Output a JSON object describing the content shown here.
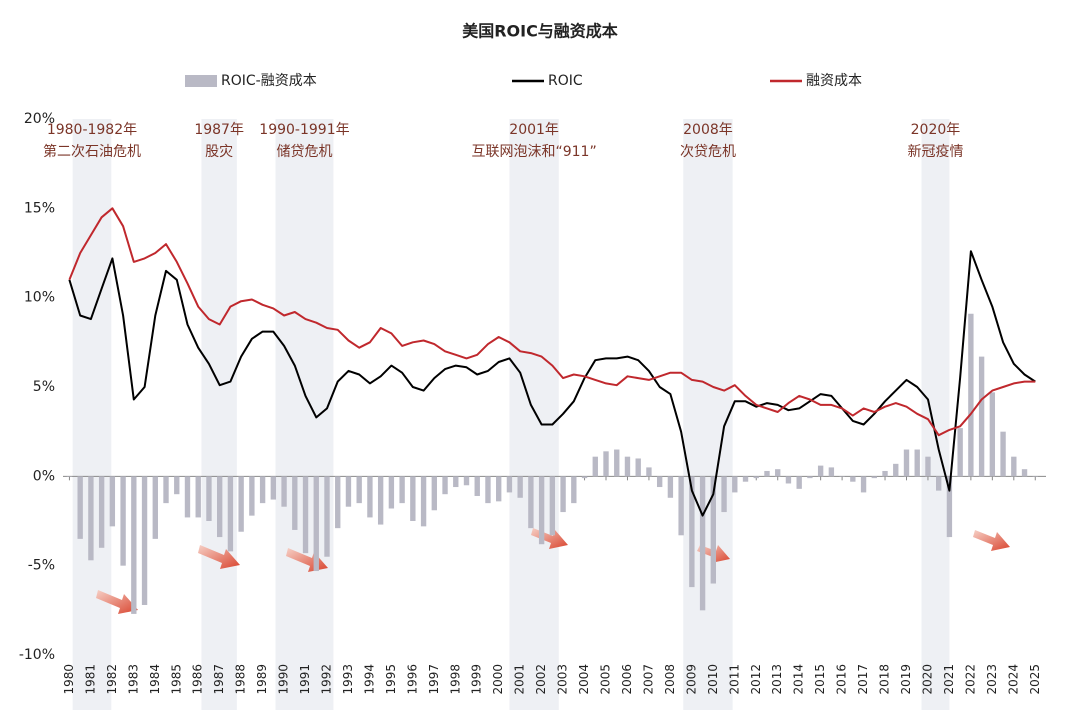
{
  "chart_data": {
    "type": "bar-line",
    "title": "美国ROIC与融资成本",
    "x": [
      1980,
      1980.5,
      1981,
      1981.5,
      1982,
      1982.5,
      1983,
      1983.5,
      1984,
      1984.5,
      1985,
      1985.5,
      1986,
      1986.5,
      1987,
      1987.5,
      1988,
      1988.5,
      1989,
      1989.5,
      1990,
      1990.5,
      1991,
      1991.5,
      1992,
      1992.5,
      1993,
      1993.5,
      1994,
      1994.5,
      1995,
      1995.5,
      1996,
      1996.5,
      1997,
      1997.5,
      1998,
      1998.5,
      1999,
      1999.5,
      2000,
      2000.5,
      2001,
      2001.5,
      2002,
      2002.5,
      2003,
      2003.5,
      2004,
      2004.5,
      2005,
      2005.5,
      2006,
      2006.5,
      2007,
      2007.5,
      2008,
      2008.5,
      2009,
      2009.5,
      2010,
      2010.5,
      2011,
      2011.5,
      2012,
      2012.5,
      2013,
      2013.5,
      2014,
      2014.5,
      2015,
      2015.5,
      2016,
      2016.5,
      2017,
      2017.5,
      2018,
      2018.5,
      2019,
      2019.5,
      2020,
      2020.5,
      2021,
      2021.5,
      2022,
      2022.5,
      2023,
      2023.5,
      2024,
      2024.5,
      2025
    ],
    "series": [
      {
        "name": "ROIC-融资成本",
        "type": "bar",
        "color": "#b9b9c5",
        "values": [
          0,
          -3.5,
          -4.7,
          -4,
          -2.8,
          -5,
          -7.7,
          -7.2,
          -3.5,
          -1.5,
          -1,
          -2.3,
          -2.3,
          -2.5,
          -3.4,
          -4.2,
          -3.1,
          -2.2,
          -1.5,
          -1.3,
          -1.7,
          -3,
          -4.3,
          -5.3,
          -4.5,
          -2.9,
          -1.7,
          -1.5,
          -2.3,
          -2.7,
          -1.8,
          -1.5,
          -2.5,
          -2.8,
          -1.9,
          -1,
          -0.6,
          -0.5,
          -1.1,
          -1.5,
          -1.4,
          -0.9,
          -1.2,
          -2.9,
          -3.8,
          -3.3,
          -2,
          -1.5,
          -0.1,
          1.1,
          1.4,
          1.5,
          1.1,
          1,
          0.5,
          -0.6,
          -1.2,
          -3.3,
          -6.2,
          -7.5,
          -6,
          -2,
          -0.9,
          -0.3,
          -0.1,
          0.3,
          0.4,
          -0.4,
          -0.7,
          -0.1,
          0.6,
          0.5,
          0,
          -0.3,
          -0.9,
          -0.1,
          0.3,
          0.7,
          1.5,
          1.5,
          1.1,
          -0.8,
          -3.4,
          2.7,
          9.1,
          6.7,
          4.7,
          2.5,
          1.1,
          0.4,
          0
        ]
      },
      {
        "name": "ROIC",
        "type": "line",
        "color": "#000000",
        "values": [
          11,
          9,
          8.8,
          10.5,
          12.2,
          9,
          4.3,
          5,
          9,
          11.5,
          11,
          8.5,
          7.2,
          6.3,
          5.1,
          5.3,
          6.7,
          7.7,
          8.1,
          8.1,
          7.3,
          6.2,
          4.5,
          3.3,
          3.8,
          5.3,
          5.9,
          5.7,
          5.2,
          5.6,
          6.2,
          5.8,
          5,
          4.8,
          5.5,
          6,
          6.2,
          6.1,
          5.7,
          5.9,
          6.4,
          6.6,
          5.8,
          4,
          2.9,
          2.9,
          3.5,
          4.2,
          5.5,
          6.5,
          6.6,
          6.6,
          6.7,
          6.5,
          5.9,
          5,
          4.6,
          2.5,
          -0.8,
          -2.2,
          -1,
          2.8,
          4.2,
          4.2,
          3.9,
          4.1,
          4,
          3.7,
          3.8,
          4.2,
          4.6,
          4.5,
          3.8,
          3.1,
          2.9,
          3.5,
          4.2,
          4.8,
          5.4,
          5,
          4.3,
          1.5,
          -0.8,
          5.5,
          12.6,
          11,
          9.5,
          7.5,
          6.3,
          5.7,
          5.3
        ]
      },
      {
        "name": "融资成本",
        "type": "line",
        "color": "#c0282d",
        "values": [
          11,
          12.5,
          13.5,
          14.5,
          15,
          14,
          12,
          12.2,
          12.5,
          13,
          12,
          10.8,
          9.5,
          8.8,
          8.5,
          9.5,
          9.8,
          9.9,
          9.6,
          9.4,
          9,
          9.2,
          8.8,
          8.6,
          8.3,
          8.2,
          7.6,
          7.2,
          7.5,
          8.3,
          8,
          7.3,
          7.5,
          7.6,
          7.4,
          7,
          6.8,
          6.6,
          6.8,
          7.4,
          7.8,
          7.5,
          7,
          6.9,
          6.7,
          6.2,
          5.5,
          5.7,
          5.6,
          5.4,
          5.2,
          5.1,
          5.6,
          5.5,
          5.4,
          5.6,
          5.8,
          5.8,
          5.4,
          5.3,
          5,
          4.8,
          5.1,
          4.5,
          4,
          3.8,
          3.6,
          4.1,
          4.5,
          4.3,
          4,
          4,
          3.8,
          3.4,
          3.8,
          3.6,
          3.9,
          4.1,
          3.9,
          3.5,
          3.2,
          2.3,
          2.6,
          2.8,
          3.5,
          4.3,
          4.8,
          5,
          5.2,
          5.3,
          5.3
        ]
      }
    ],
    "xlim": [
      1979.7,
      2025.5
    ],
    "xticks": [
      1980,
      1981,
      1982,
      1983,
      1984,
      1985,
      1986,
      1987,
      1988,
      1989,
      1990,
      1991,
      1992,
      1993,
      1994,
      1995,
      1996,
      1997,
      1998,
      1999,
      2000,
      2001,
      2002,
      2003,
      2004,
      2005,
      2006,
      2007,
      2008,
      2009,
      2010,
      2011,
      2012,
      2013,
      2014,
      2015,
      2016,
      2017,
      2018,
      2019,
      2020,
      2021,
      2022,
      2023,
      2024,
      2025
    ],
    "ylim": [
      -10,
      20
    ],
    "yticks": [
      {
        "value": 20,
        "label": "20%"
      },
      {
        "value": 15,
        "label": "15%"
      },
      {
        "value": 10,
        "label": "10%"
      },
      {
        "value": 5,
        "label": "5%"
      },
      {
        "value": 0,
        "label": "0%"
      },
      {
        "value": -5,
        "label": "-5%"
      },
      {
        "value": -10,
        "label": "-10%"
      }
    ],
    "grid": false,
    "legend": "top",
    "annotations": [
      {
        "span": [
          1980.15,
          1981.95
        ],
        "lines": [
          "1980-1982年",
          "第二次石油危机"
        ]
      },
      {
        "span": [
          1986.15,
          1987.8
        ],
        "lines": [
          "1987年",
          "股灾"
        ]
      },
      {
        "span": [
          1989.6,
          1992.3
        ],
        "lines": [
          "1990-1991年",
          "储贷危机"
        ]
      },
      {
        "span": [
          2000.5,
          2002.8
        ],
        "lines": [
          "2001年",
          "互联网泡沫和“911”"
        ]
      },
      {
        "span": [
          2008.6,
          2010.9
        ],
        "lines": [
          "2008年",
          "次贷危机"
        ]
      },
      {
        "span": [
          2019.7,
          2021.0
        ],
        "lines": [
          "2020年",
          "新冠疫情"
        ]
      }
    ]
  }
}
